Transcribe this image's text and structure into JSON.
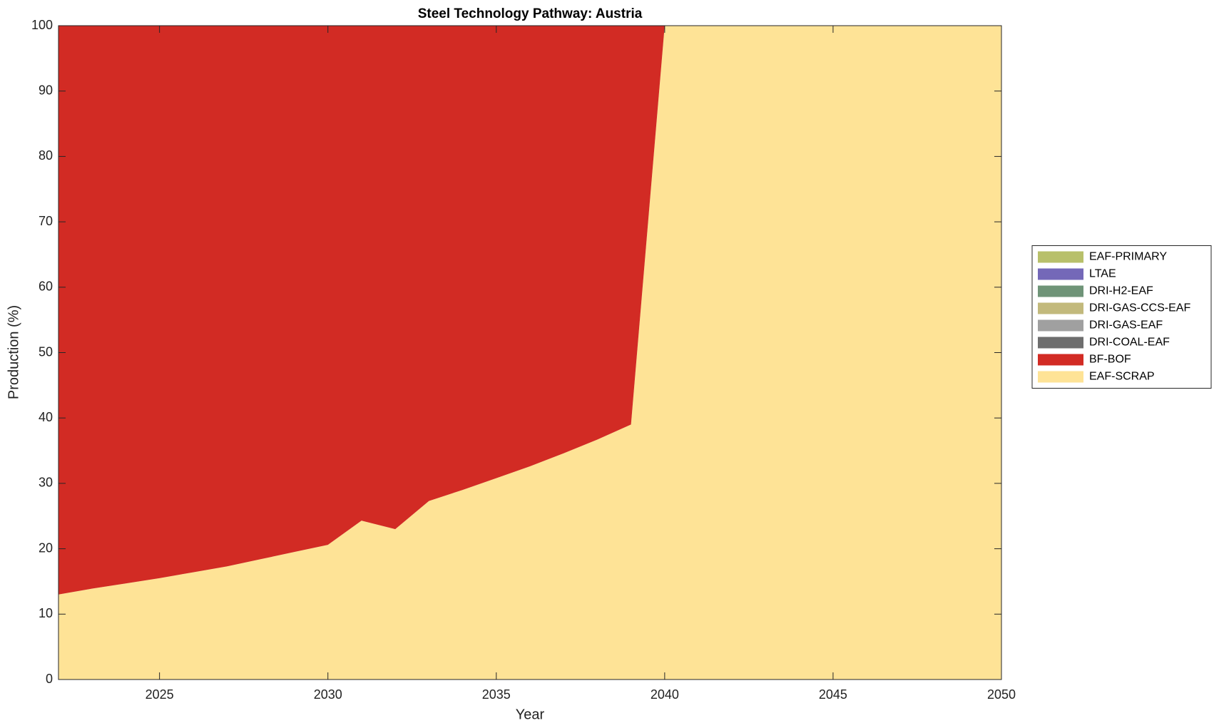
{
  "chart_data": {
    "type": "stacked-area",
    "title": "Steel Technology Pathway: Austria",
    "x_label": "Year",
    "y_label": "Production (%)",
    "x": [
      2022,
      2023,
      2024,
      2025,
      2026,
      2027,
      2028,
      2029,
      2030,
      2031,
      2032,
      2033,
      2034,
      2035,
      2036,
      2037,
      2038,
      2039,
      2040,
      2041,
      2042,
      2043,
      2044,
      2045,
      2046,
      2047,
      2048,
      2049,
      2050
    ],
    "series": [
      {
        "name": "EAF-SCRAP",
        "color": "#fee396",
        "values": [
          13.0,
          13.9,
          14.7,
          15.5,
          16.4,
          17.3,
          18.4,
          19.5,
          20.6,
          24.3,
          23.0,
          27.3,
          29.0,
          30.8,
          32.6,
          34.6,
          36.7,
          39.0,
          100,
          100,
          100,
          100,
          100,
          100,
          100,
          100,
          100,
          100,
          100
        ]
      },
      {
        "name": "BF-BOF",
        "color": "#d22b24",
        "values": [
          87.0,
          86.1,
          85.3,
          84.5,
          83.6,
          82.7,
          81.6,
          80.5,
          79.4,
          75.7,
          77.0,
          72.7,
          71.0,
          69.2,
          67.4,
          65.4,
          63.3,
          61.0,
          0,
          0,
          0,
          0,
          0,
          0,
          0,
          0,
          0,
          0,
          0
        ]
      },
      {
        "name": "DRI-COAL-EAF",
        "color": "#6e6e6e",
        "values": [
          0,
          0,
          0,
          0,
          0,
          0,
          0,
          0,
          0,
          0,
          0,
          0,
          0,
          0,
          0,
          0,
          0,
          0,
          0,
          0,
          0,
          0,
          0,
          0,
          0,
          0,
          0,
          0,
          0
        ]
      },
      {
        "name": "DRI-GAS-EAF",
        "color": "#a0a0a0",
        "values": [
          0,
          0,
          0,
          0,
          0,
          0,
          0,
          0,
          0,
          0,
          0,
          0,
          0,
          0,
          0,
          0,
          0,
          0,
          0,
          0,
          0,
          0,
          0,
          0,
          0,
          0,
          0,
          0,
          0
        ]
      },
      {
        "name": "DRI-GAS-CCS-EAF",
        "color": "#c2b97c",
        "values": [
          0,
          0,
          0,
          0,
          0,
          0,
          0,
          0,
          0,
          0,
          0,
          0,
          0,
          0,
          0,
          0,
          0,
          0,
          0,
          0,
          0,
          0,
          0,
          0,
          0,
          0,
          0,
          0,
          0
        ]
      },
      {
        "name": "DRI-H2-EAF",
        "color": "#6f9478",
        "values": [
          0,
          0,
          0,
          0,
          0,
          0,
          0,
          0,
          0,
          0,
          0,
          0,
          0,
          0,
          0,
          0,
          0,
          0,
          0,
          0,
          0,
          0,
          0,
          0,
          0,
          0,
          0,
          0,
          0
        ]
      },
      {
        "name": "LTAE",
        "color": "#7468b8",
        "values": [
          0,
          0,
          0,
          0,
          0,
          0,
          0,
          0,
          0,
          0,
          0,
          0,
          0,
          0,
          0,
          0,
          0,
          0,
          0,
          0,
          0,
          0,
          0,
          0,
          0,
          0,
          0,
          0,
          0
        ]
      },
      {
        "name": "EAF-PRIMARY",
        "color": "#b8c06a",
        "values": [
          0,
          0,
          0,
          0,
          0,
          0,
          0,
          0,
          0,
          0,
          0,
          0,
          0,
          0,
          0,
          0,
          0,
          0,
          0,
          0,
          0,
          0,
          0,
          0,
          0,
          0,
          0,
          0,
          0
        ]
      }
    ],
    "xlim": [
      2022,
      2050
    ],
    "xticks": [
      2025,
      2030,
      2035,
      2040,
      2045,
      2050
    ],
    "ylim": [
      0,
      100
    ],
    "yticks": [
      0,
      10,
      20,
      30,
      40,
      50,
      60,
      70,
      80,
      90,
      100
    ],
    "legend": "east-outside"
  }
}
